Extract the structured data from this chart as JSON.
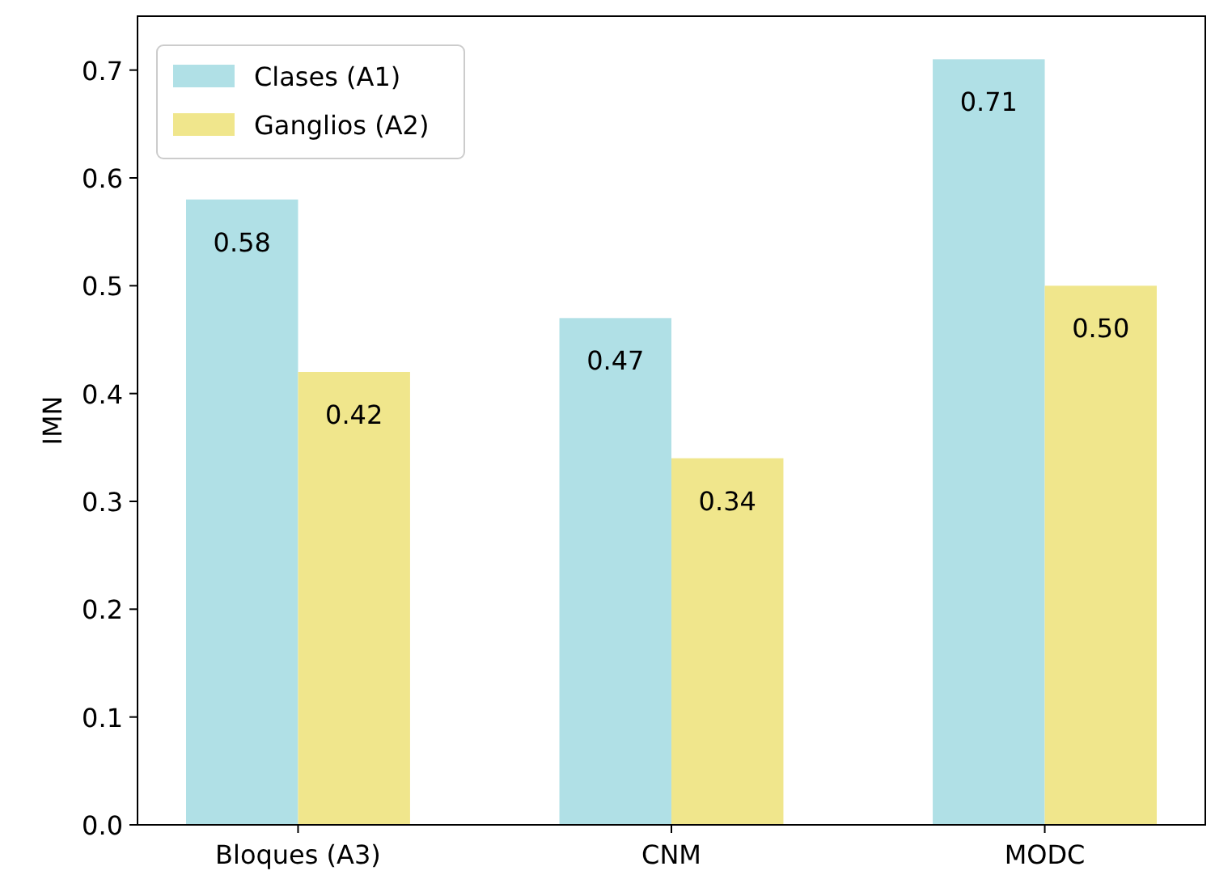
{
  "chart_data": {
    "type": "bar",
    "ylabel": "IMN",
    "categories": [
      "Bloques (A3)",
      "CNM",
      "MODC"
    ],
    "series": [
      {
        "name": "Clases (A1)",
        "color": "#b0e0e6",
        "values": [
          0.58,
          0.47,
          0.71
        ],
        "value_labels": [
          "0.58",
          "0.47",
          "0.71"
        ]
      },
      {
        "name": "Ganglios (A2)",
        "color": "#f0e68c",
        "values": [
          0.42,
          0.34,
          0.5
        ],
        "value_labels": [
          "0.42",
          "0.34",
          "0.50"
        ]
      }
    ],
    "ylim": [
      0,
      0.75
    ],
    "yticks": [
      {
        "value": 0,
        "label": "0.0"
      },
      0.1,
      0.2,
      0.3,
      0.4,
      0.5,
      0.6,
      0.7
    ],
    "legend": "top left"
  }
}
